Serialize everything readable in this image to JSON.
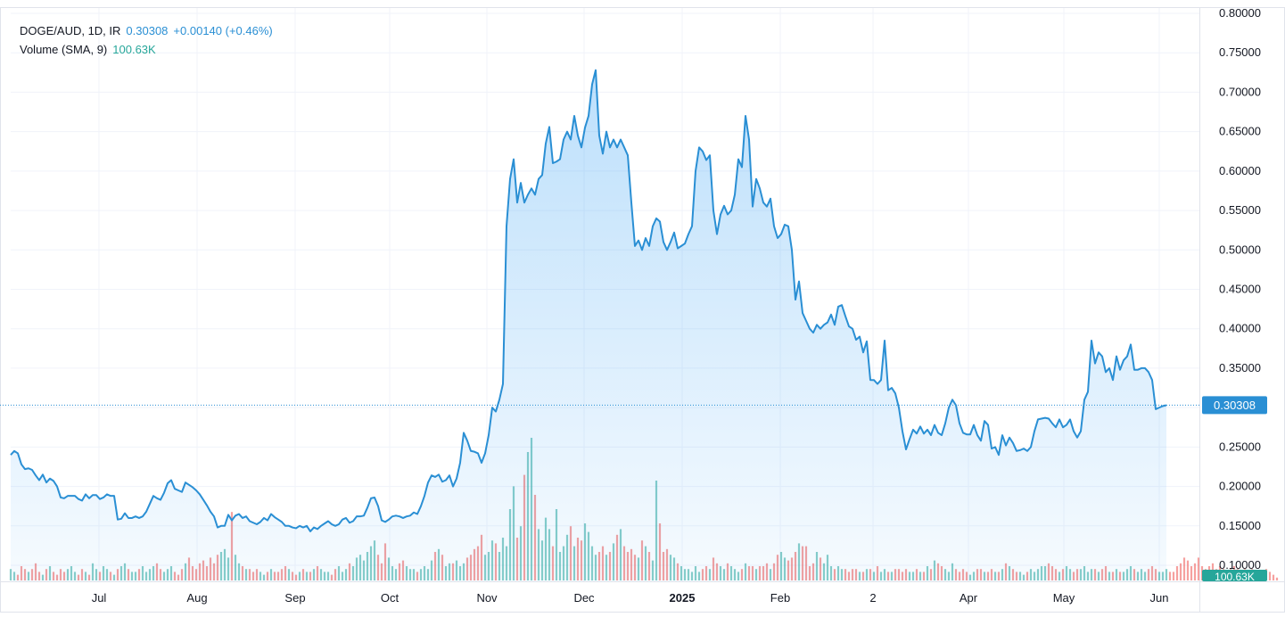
{
  "legend": {
    "symbol": "DOGE/AUD, 1D, IR",
    "last": "0.30308",
    "change": "+0.00140 (+0.46%)",
    "volume_label": "Volume (SMA, 9)",
    "volume_value": "100.63K"
  },
  "chart_data": {
    "type": "area",
    "symbol": "DOGE/AUD",
    "interval": "1D",
    "ylim": [
      0.1,
      0.8
    ],
    "y_ticks": [
      "0.80000",
      "0.75000",
      "0.70000",
      "0.65000",
      "0.60000",
      "0.55000",
      "0.50000",
      "0.45000",
      "0.40000",
      "0.35000",
      "0.30000",
      "0.25000",
      "0.20000",
      "0.15000",
      "0.10000"
    ],
    "x_ticks": [
      "Jul",
      "Aug",
      "Sep",
      "Oct",
      "Nov",
      "Dec",
      "2025",
      "Feb",
      "2",
      "Apr",
      "May",
      "Jun"
    ],
    "last_price_label": "0.30308",
    "last_volume_label": "100.63K",
    "series": [
      {
        "values": [
          0.24,
          0.245,
          0.242,
          0.228,
          0.222,
          0.223,
          0.221,
          0.214,
          0.208,
          0.215,
          0.205,
          0.21,
          0.207,
          0.2,
          0.186,
          0.185,
          0.188,
          0.188,
          0.188,
          0.184,
          0.182,
          0.19,
          0.185,
          0.189,
          0.189,
          0.184,
          0.186,
          0.19,
          0.188,
          0.188,
          0.158,
          0.159,
          0.166,
          0.16,
          0.16,
          0.162,
          0.16,
          0.162,
          0.168,
          0.178,
          0.188,
          0.185,
          0.183,
          0.192,
          0.204,
          0.208,
          0.197,
          0.195,
          0.193,
          0.205,
          0.202,
          0.199,
          0.195,
          0.19,
          0.183,
          0.176,
          0.168,
          0.162,
          0.148,
          0.15,
          0.15,
          0.164,
          0.157,
          0.163,
          0.165,
          0.16,
          0.162,
          0.156,
          0.154,
          0.152,
          0.155,
          0.16,
          0.157,
          0.165,
          0.161,
          0.158,
          0.155,
          0.15,
          0.15,
          0.148,
          0.147,
          0.15,
          0.148,
          0.15,
          0.143,
          0.148,
          0.146,
          0.15,
          0.153,
          0.156,
          0.152,
          0.15,
          0.152,
          0.158,
          0.16,
          0.154,
          0.156,
          0.162,
          0.162,
          0.163,
          0.173,
          0.185,
          0.186,
          0.175,
          0.157,
          0.155,
          0.158,
          0.162,
          0.163,
          0.162,
          0.16,
          0.162,
          0.163,
          0.167,
          0.165,
          0.175,
          0.188,
          0.205,
          0.214,
          0.212,
          0.215,
          0.206,
          0.208,
          0.214,
          0.2,
          0.21,
          0.23,
          0.268,
          0.258,
          0.245,
          0.244,
          0.242,
          0.23,
          0.242,
          0.265,
          0.3,
          0.295,
          0.31,
          0.33,
          0.53,
          0.59,
          0.615,
          0.56,
          0.585,
          0.56,
          0.57,
          0.578,
          0.57,
          0.59,
          0.595,
          0.635,
          0.656,
          0.61,
          0.612,
          0.615,
          0.64,
          0.65,
          0.64,
          0.67,
          0.645,
          0.63,
          0.655,
          0.67,
          0.71,
          0.728,
          0.645,
          0.622,
          0.65,
          0.63,
          0.64,
          0.63,
          0.64,
          0.63,
          0.62,
          0.56,
          0.505,
          0.512,
          0.5,
          0.515,
          0.505,
          0.53,
          0.54,
          0.536,
          0.51,
          0.5,
          0.51,
          0.522,
          0.502,
          0.505,
          0.508,
          0.52,
          0.53,
          0.6,
          0.63,
          0.625,
          0.614,
          0.62,
          0.55,
          0.52,
          0.545,
          0.556,
          0.545,
          0.55,
          0.57,
          0.615,
          0.605,
          0.67,
          0.64,
          0.555,
          0.59,
          0.578,
          0.56,
          0.555,
          0.565,
          0.53,
          0.515,
          0.52,
          0.532,
          0.53,
          0.5,
          0.437,
          0.46,
          0.42,
          0.41,
          0.4,
          0.395,
          0.405,
          0.4,
          0.405,
          0.408,
          0.418,
          0.405,
          0.428,
          0.43,
          0.416,
          0.403,
          0.4,
          0.386,
          0.39,
          0.37,
          0.384,
          0.335,
          0.335,
          0.33,
          0.335,
          0.385,
          0.322,
          0.325,
          0.318,
          0.3,
          0.27,
          0.247,
          0.26,
          0.272,
          0.267,
          0.276,
          0.267,
          0.272,
          0.265,
          0.278,
          0.268,
          0.265,
          0.28,
          0.3,
          0.31,
          0.303,
          0.28,
          0.268,
          0.266,
          0.266,
          0.278,
          0.265,
          0.258,
          0.283,
          0.278,
          0.248,
          0.25,
          0.24,
          0.265,
          0.252,
          0.262,
          0.255,
          0.245,
          0.246,
          0.248,
          0.245,
          0.25,
          0.27,
          0.285,
          0.286,
          0.287,
          0.286,
          0.28,
          0.275,
          0.285,
          0.275,
          0.278,
          0.285,
          0.27,
          0.262,
          0.27,
          0.31,
          0.32,
          0.385,
          0.356,
          0.37,
          0.365,
          0.345,
          0.35,
          0.335,
          0.365,
          0.348,
          0.36,
          0.365,
          0.38,
          0.348,
          0.348,
          0.35,
          0.35,
          0.345,
          0.335,
          0.298,
          0.3,
          0.302,
          0.303
        ]
      },
      {
        "name": "Volume (SMA, 9)",
        "values": [
          4,
          3,
          2,
          5,
          4,
          3,
          4,
          6,
          3,
          2,
          4,
          5,
          3,
          2,
          4,
          3,
          4,
          5,
          3,
          2,
          4,
          3,
          2,
          6,
          4,
          3,
          5,
          4,
          3,
          2,
          4,
          5,
          6,
          4,
          3,
          3,
          4,
          5,
          3,
          4,
          5,
          6,
          4,
          3,
          4,
          5,
          3,
          2,
          4,
          6,
          8,
          5,
          4,
          6,
          7,
          5,
          8,
          6,
          9,
          10,
          11,
          8,
          24,
          9,
          6,
          5,
          4,
          4,
          3,
          4,
          3,
          2,
          3,
          4,
          3,
          3,
          4,
          5,
          4,
          3,
          2,
          3,
          4,
          3,
          3,
          4,
          5,
          4,
          3,
          3,
          2,
          4,
          5,
          3,
          4,
          6,
          5,
          8,
          9,
          7,
          10,
          12,
          14,
          9,
          6,
          13,
          8,
          5,
          4,
          6,
          7,
          5,
          4,
          4,
          3,
          4,
          5,
          4,
          7,
          10,
          11,
          9,
          5,
          6,
          6,
          7,
          5,
          6,
          8,
          9,
          11,
          12,
          16,
          9,
          10,
          14,
          13,
          10,
          15,
          12,
          25,
          33,
          15,
          19,
          37,
          45,
          50,
          30,
          18,
          14,
          22,
          18,
          12,
          25,
          10,
          12,
          16,
          19,
          12,
          15,
          14,
          20,
          17,
          12,
          9,
          10,
          12,
          9,
          10,
          13,
          16,
          18,
          12,
          10,
          11,
          9,
          8,
          14,
          12,
          10,
          7,
          35,
          20,
          10,
          11,
          9,
          8,
          6,
          5,
          4,
          4,
          3,
          5,
          3,
          4,
          5,
          4,
          8,
          6,
          5,
          4,
          6,
          5,
          4,
          3,
          4,
          6,
          5,
          5,
          4,
          5,
          5,
          6,
          4,
          6,
          9,
          10,
          8,
          7,
          8,
          10,
          13,
          12,
          12,
          5,
          6,
          10,
          8,
          6,
          9,
          5,
          4,
          5,
          4,
          4,
          3,
          4,
          4,
          3,
          3,
          4,
          4,
          3,
          5,
          3,
          4,
          3,
          3,
          4,
          4,
          3,
          4,
          3,
          3,
          4,
          3,
          3,
          5,
          4,
          7,
          6,
          5,
          4,
          3,
          6,
          4,
          3,
          4,
          3,
          2,
          3,
          4,
          4,
          3,
          3,
          4,
          3,
          3,
          4,
          6,
          5,
          4,
          3,
          3,
          2,
          3,
          4,
          3,
          4,
          5,
          5,
          6,
          5,
          4,
          3,
          4,
          5,
          4,
          3,
          4,
          4,
          5,
          3,
          4,
          4,
          3,
          4,
          5,
          3,
          3,
          4,
          3,
          3,
          4,
          5,
          4,
          3,
          4,
          3,
          4,
          5,
          4,
          3,
          3,
          4,
          3,
          3,
          5,
          6,
          8,
          7,
          5,
          6,
          8,
          5,
          4,
          5,
          6,
          4,
          5,
          4,
          3,
          4,
          5,
          4,
          3,
          4,
          3,
          4,
          3,
          2,
          3,
          4,
          3,
          2,
          1
        ]
      }
    ]
  }
}
